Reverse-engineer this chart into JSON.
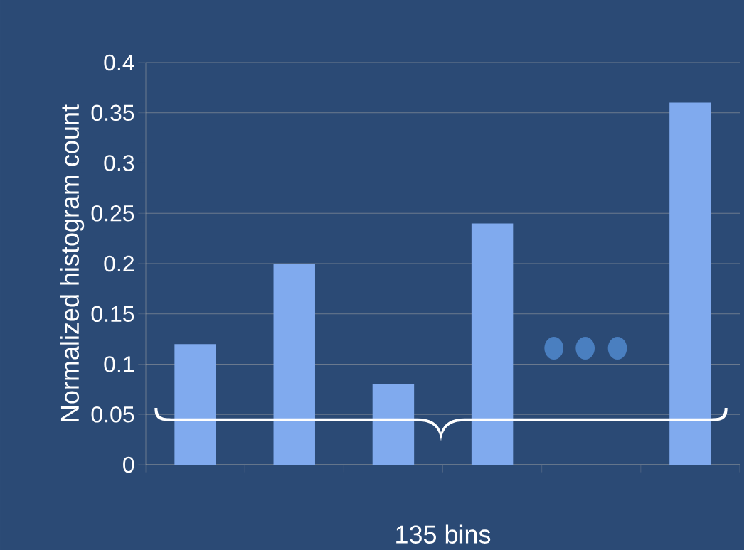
{
  "chart_data": {
    "type": "bar",
    "categories": [
      null,
      null,
      null,
      null,
      null,
      null
    ],
    "values": [
      0.12,
      0.2,
      0.08,
      0.24,
      null,
      0.36
    ],
    "color": "#80aaee",
    "xlabel": "135 bins",
    "ylabel": "Normalized histogram count",
    "ylim": [
      0,
      0.4
    ],
    "yticks": [
      0,
      0.05,
      0.1,
      0.15,
      0.2,
      0.25,
      0.3,
      0.35,
      0.4
    ],
    "grid": "y"
  }
}
